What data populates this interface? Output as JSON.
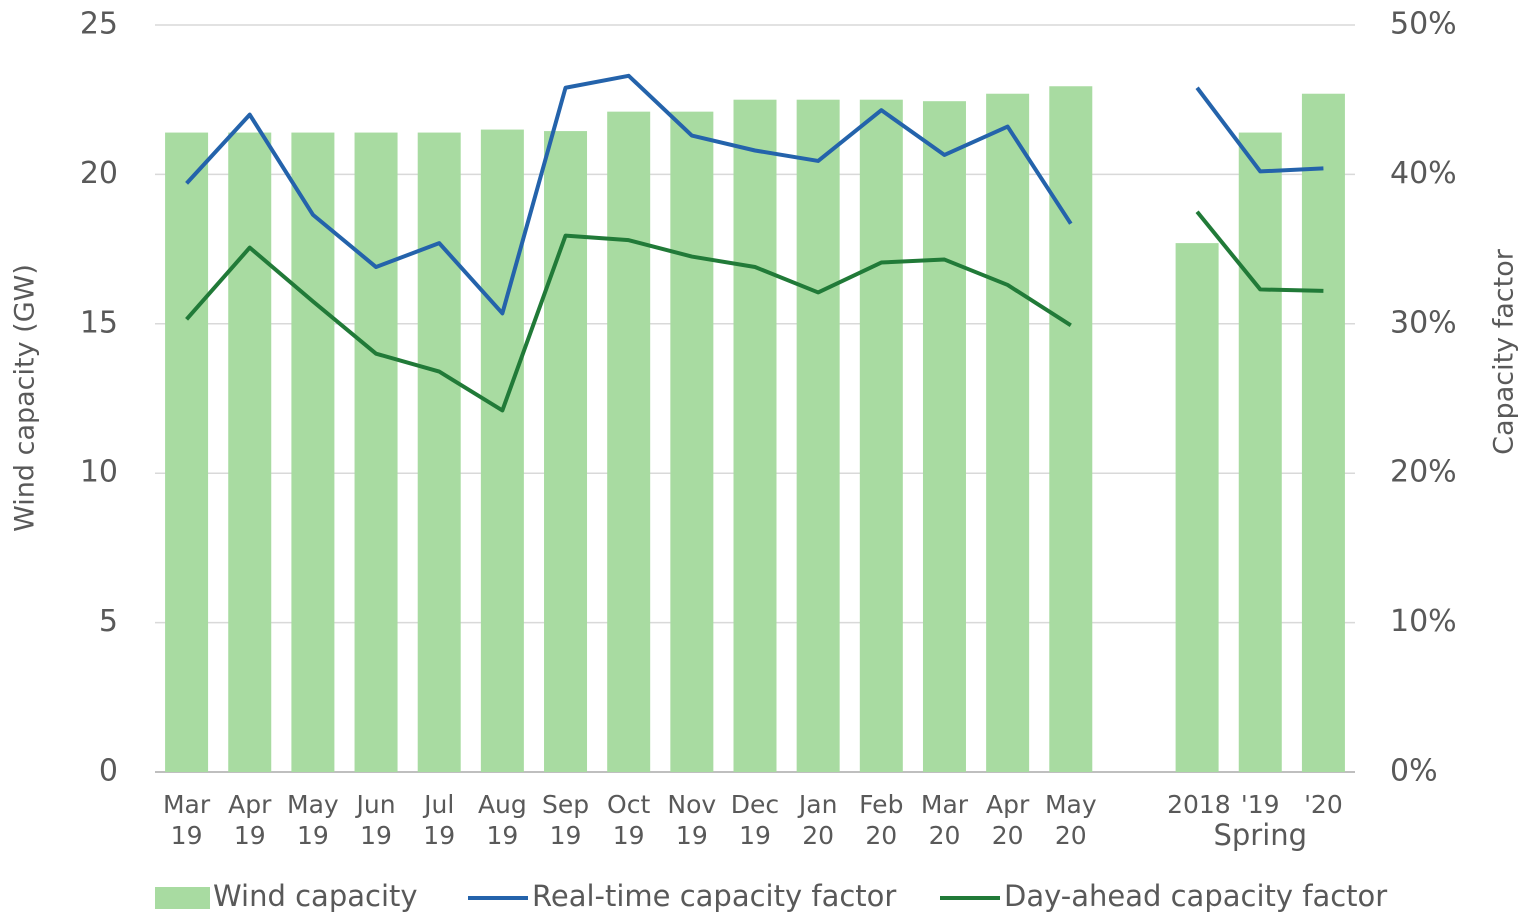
{
  "chart_data": {
    "type": "bar",
    "categories": [
      "Mar 19",
      "Apr 19",
      "May 19",
      "Jun 19",
      "Jul 19",
      "Aug 19",
      "Sep 19",
      "Oct 19",
      "Nov 19",
      "Dec 19",
      "Jan 20",
      "Feb 20",
      "Mar 20",
      "Apr 20",
      "May 20",
      null,
      "2018",
      "'19",
      "'20"
    ],
    "group_label": "Spring",
    "y_label": "Wind capacity (GW)",
    "y2_label": "Capacity factor",
    "ylim": [
      0,
      25
    ],
    "yticks": [
      0,
      5,
      10,
      15,
      20,
      25
    ],
    "y2lim": [
      0,
      50
    ],
    "y2ticks": [
      {
        "value": 0,
        "label": "0%"
      },
      {
        "value": 10,
        "label": "10%"
      },
      {
        "value": 20,
        "label": "20%"
      },
      {
        "value": 30,
        "label": "30%"
      },
      {
        "value": 40,
        "label": "40%"
      },
      {
        "value": 50,
        "label": "50%"
      }
    ],
    "grid": true,
    "legend": "bottom",
    "series": [
      {
        "name": "Wind capacity",
        "type": "bar",
        "color": "#a8dba1",
        "values": [
          21.4,
          21.4,
          21.4,
          21.4,
          21.4,
          21.5,
          21.45,
          22.1,
          22.1,
          22.5,
          22.5,
          22.5,
          22.45,
          22.7,
          22.95,
          null,
          17.7,
          21.4,
          22.7
        ]
      },
      {
        "name": "Real-time capacity factor",
        "type": "line",
        "axis": "y2",
        "color": "#2463ab",
        "values": [
          39.4,
          44.0,
          37.3,
          33.8,
          35.4,
          30.7,
          45.8,
          46.6,
          42.6,
          41.6,
          40.9,
          44.3,
          41.3,
          43.2,
          36.7,
          null,
          45.8,
          40.2,
          40.4
        ]
      },
      {
        "name": "Day-ahead capacity factor",
        "type": "line",
        "axis": "y2",
        "color": "#217a38",
        "values": [
          30.3,
          35.1,
          31.5,
          28.0,
          26.8,
          24.2,
          35.9,
          35.6,
          34.5,
          33.8,
          32.1,
          34.1,
          34.3,
          32.6,
          29.9,
          null,
          37.5,
          32.3,
          32.2
        ]
      }
    ]
  }
}
